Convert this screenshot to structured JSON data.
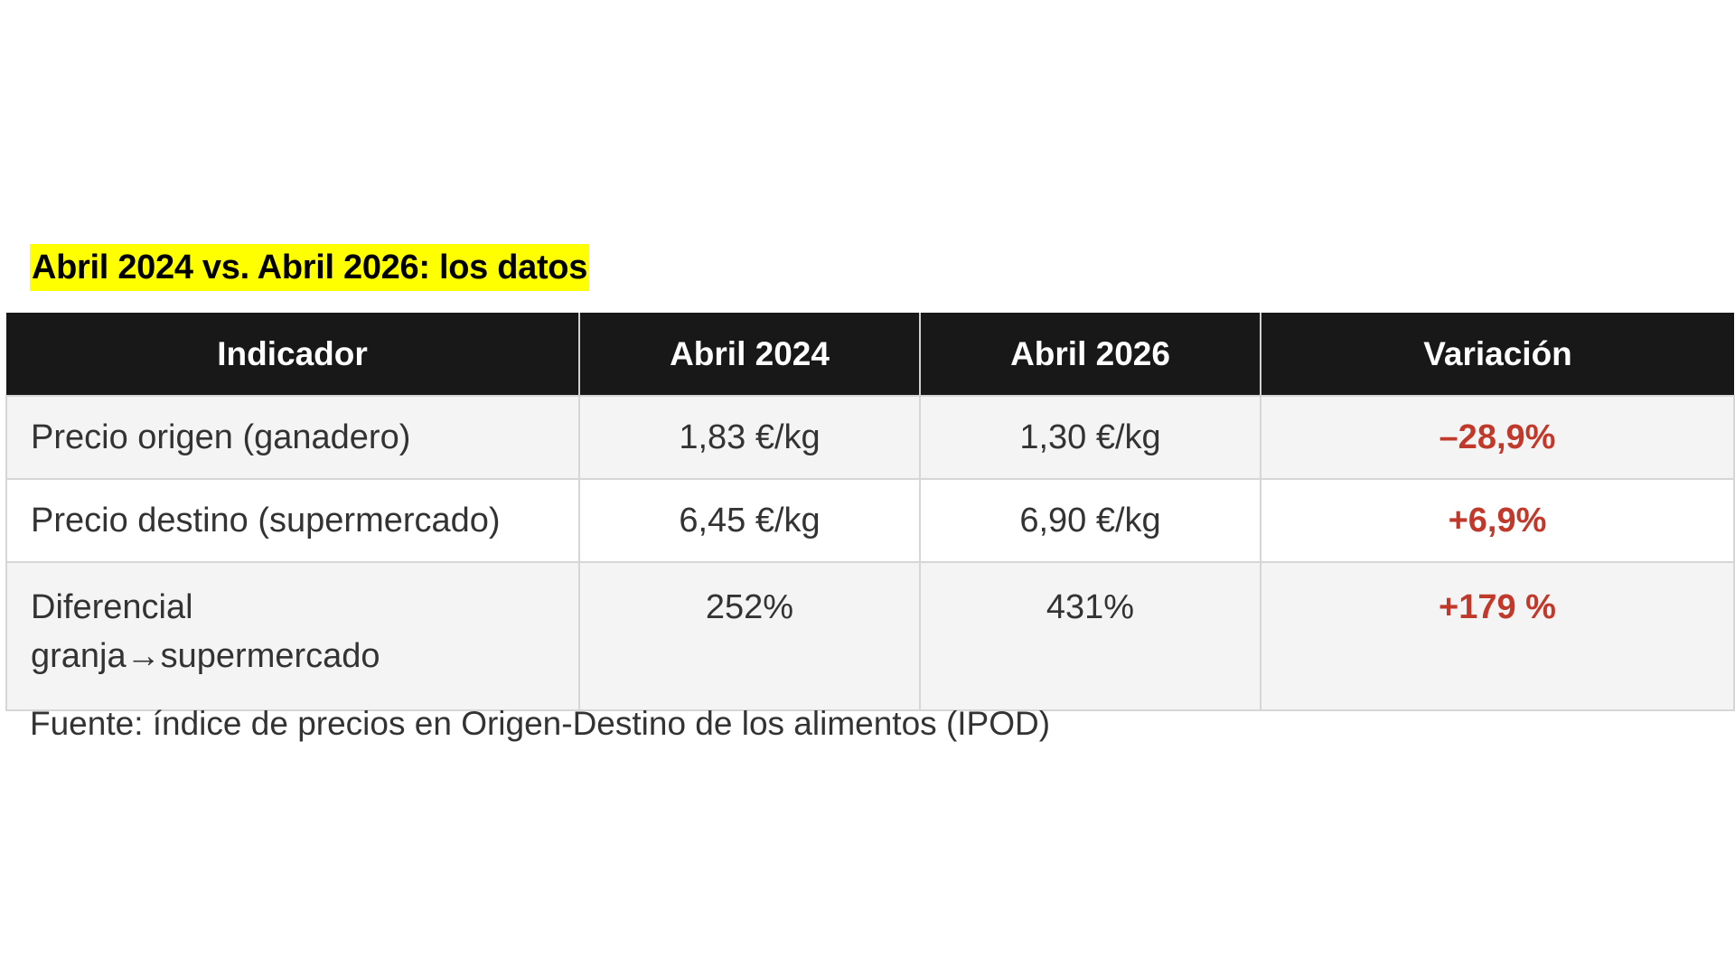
{
  "title": "Abril 2024 vs. Abril 2026: los datos",
  "table": {
    "headers": [
      "Indicador",
      "Abril 2024",
      "Abril 2026",
      "Variación"
    ],
    "rows": [
      {
        "indicator": "Precio origen (ganadero)",
        "apr2024": "1,83 €/kg",
        "apr2026": "1,30 €/kg",
        "variation": "–28,9%"
      },
      {
        "indicator": "Precio destino (supermercado)",
        "apr2024": "6,45 €/kg",
        "apr2026": "6,90 €/kg",
        "variation": "+6,9%"
      },
      {
        "indicator_line1": "Diferencial",
        "indicator_line2": "granja→supermercado",
        "apr2024": "252%",
        "apr2026": "431%",
        "variation": "+179 %"
      }
    ]
  },
  "source": "Fuente: índice de precios en Origen-Destino de los alimentos (IPOD)",
  "colors": {
    "title_highlight": "#ffff00",
    "header_bg": "#181818",
    "variation_text": "#c0392b"
  }
}
